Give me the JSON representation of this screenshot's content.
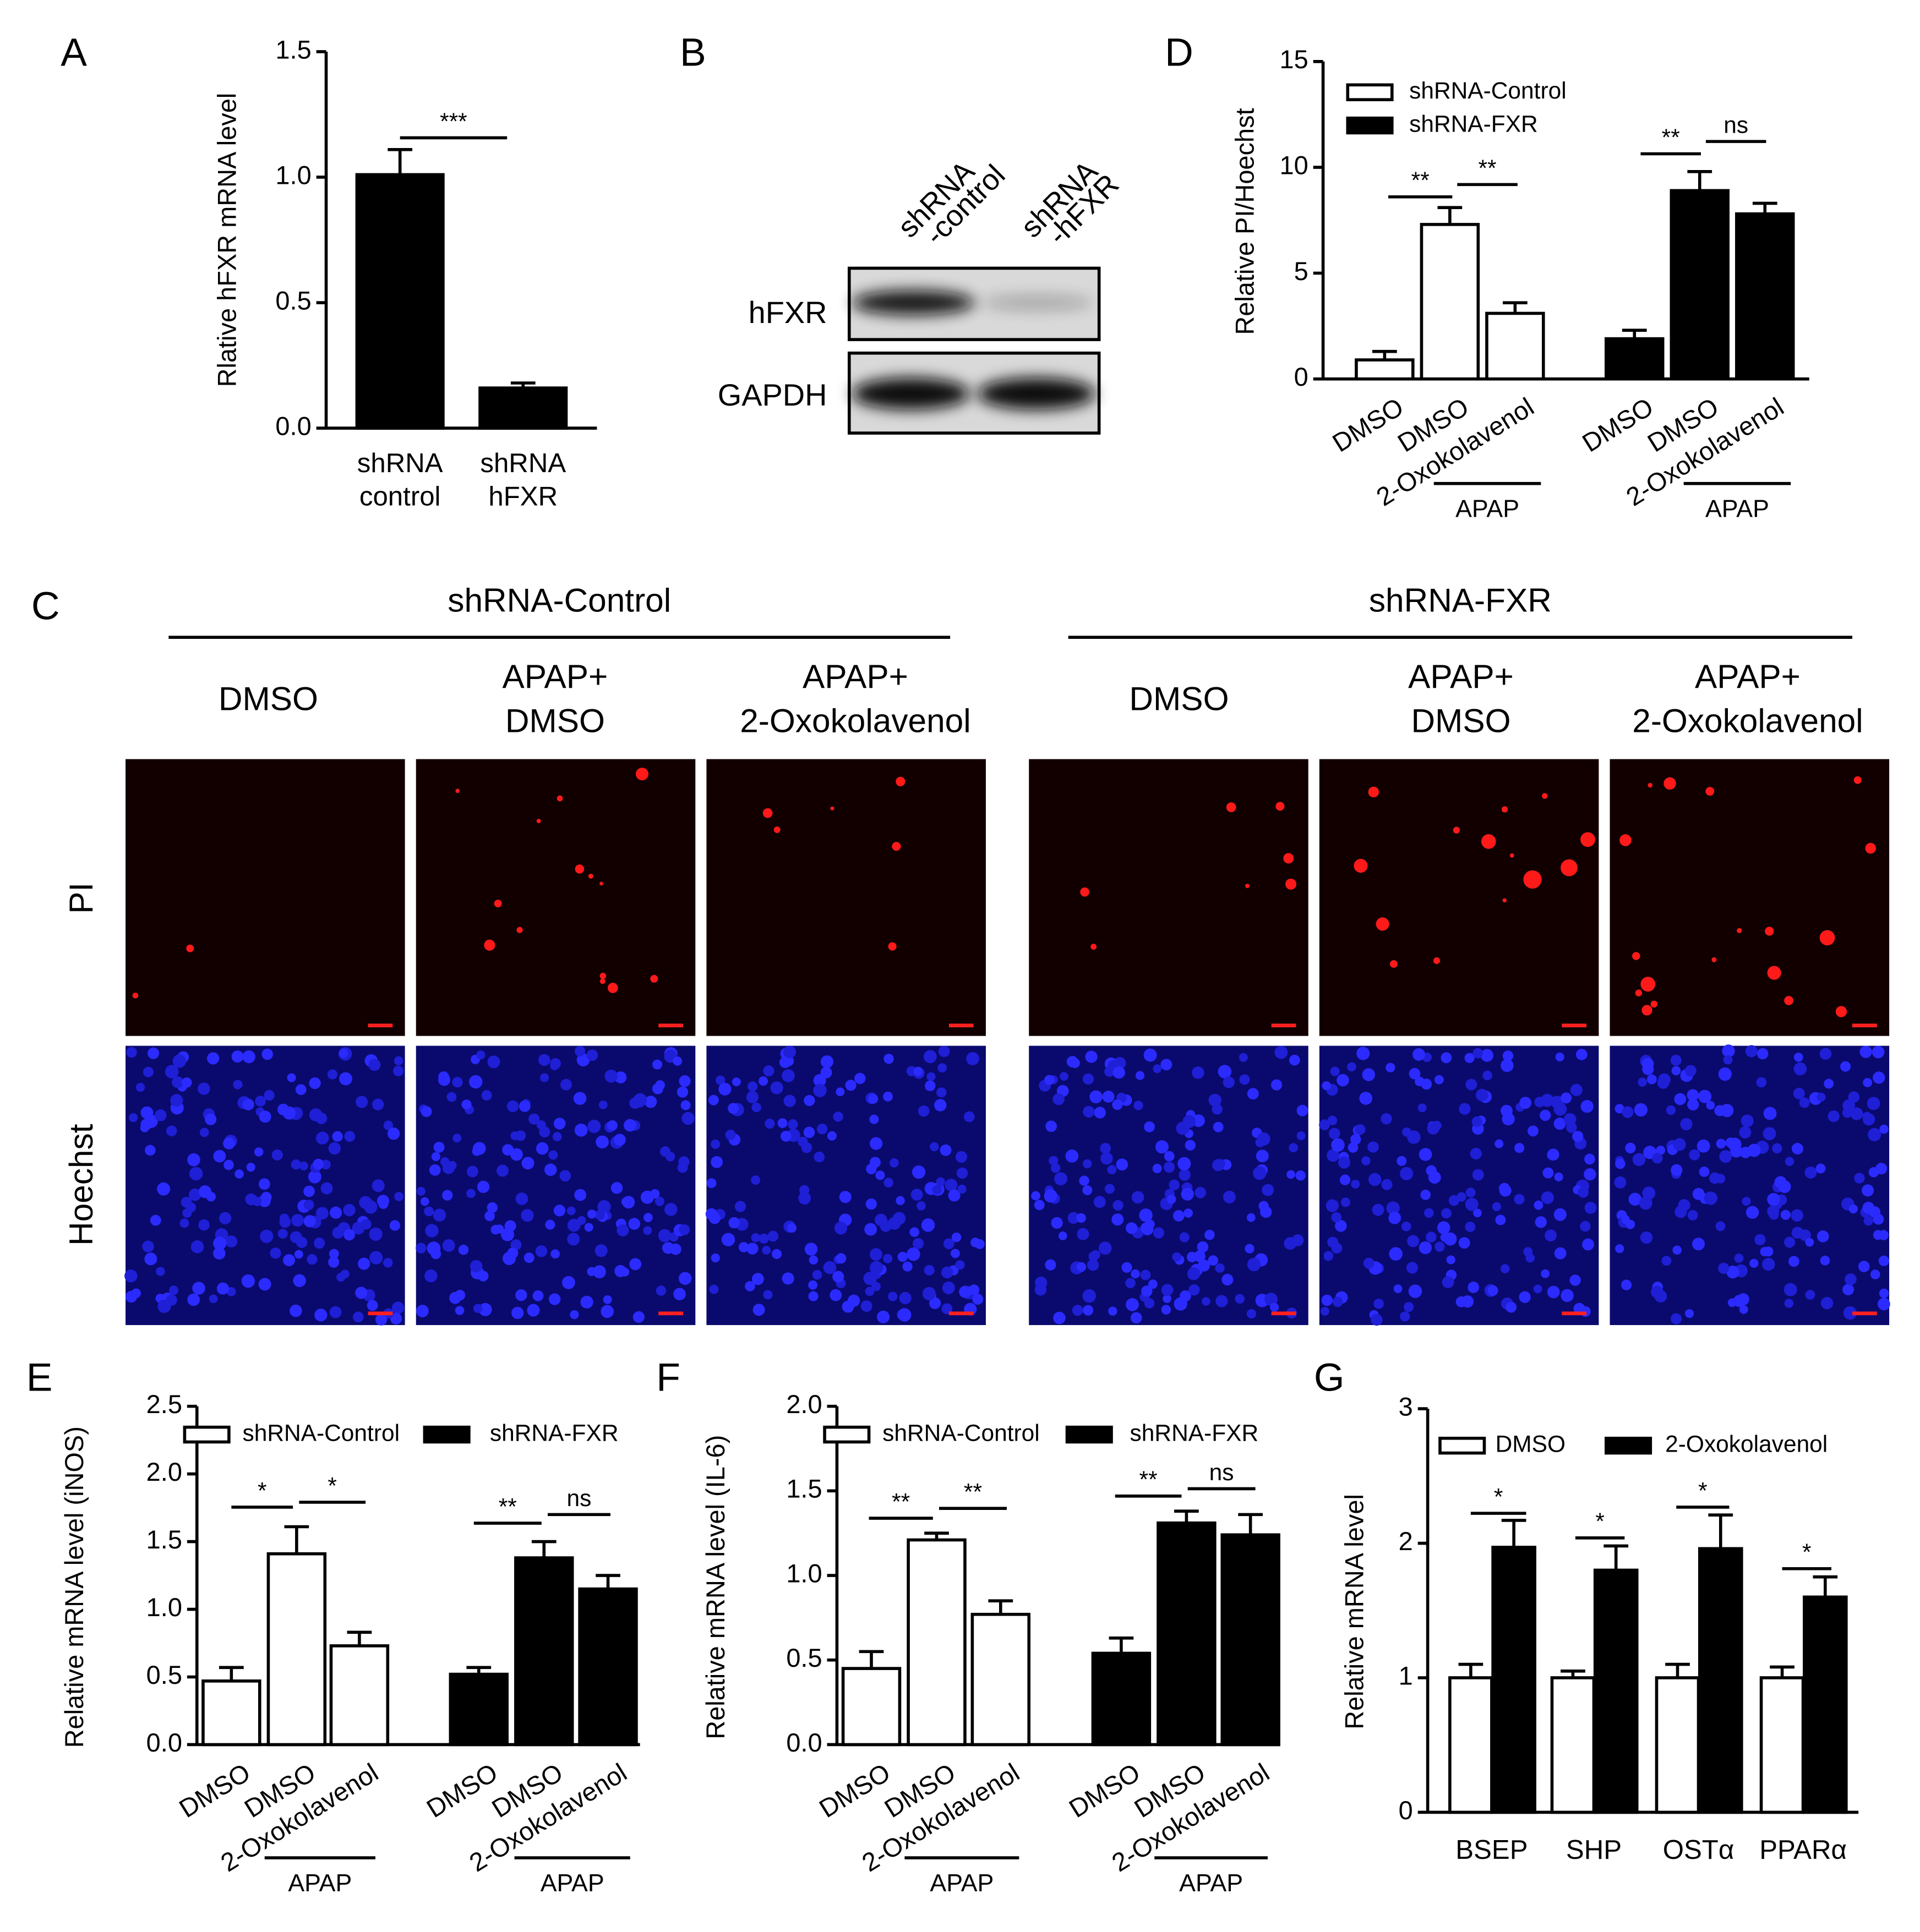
{
  "chart_data": [
    {
      "type": "bar",
      "panel": "A",
      "ylabel": "Rlative hFXR mRNA level",
      "categories": [
        [
          "shRNA",
          "control"
        ],
        [
          "shRNA",
          "hFXR"
        ]
      ],
      "values": [
        1.01,
        0.16
      ],
      "errors": [
        0.1,
        0.02
      ],
      "color": "#000000",
      "ylim": [
        0,
        1.5
      ],
      "yticks": [
        {
          "value": 0,
          "label": "0.0"
        },
        {
          "value": 0.5,
          "label": "0.5"
        },
        {
          "value": 1,
          "label": "1.0"
        },
        {
          "value": 1.5,
          "label": "1.5"
        }
      ],
      "significance": [
        "***"
      ]
    },
    {
      "type": "bar",
      "panel": "D",
      "ylabel": "Relative PI/Hoechst",
      "categories": [
        "DMSO",
        "DMSO",
        "2-Oxokolavenol",
        "DMSO",
        "DMSO",
        "2-Oxokolavenol"
      ],
      "series": [
        {
          "name": "shRNA-Control",
          "color": "#ffffff",
          "values": [
            0.9,
            7.3,
            3.1,
            null,
            null,
            null
          ],
          "errors": [
            0.4,
            0.8,
            0.5,
            null,
            null,
            null
          ]
        },
        {
          "name": "shRNA-FXR",
          "color": "#000000",
          "values": [
            null,
            null,
            null,
            1.9,
            8.9,
            7.8
          ],
          "errors": [
            null,
            null,
            null,
            0.4,
            0.9,
            0.5
          ]
        }
      ],
      "ylim": [
        0,
        15
      ],
      "yticks": [
        0,
        5,
        10,
        15
      ],
      "legend": "upper left",
      "significance": [
        "**",
        "**",
        "**",
        "ns"
      ],
      "treatment_labels": [
        "APAP",
        "APAP"
      ]
    },
    {
      "type": "bar",
      "panel": "E",
      "ylabel": "Relative mRNA level (iNOS)",
      "categories": [
        "DMSO",
        "DMSO",
        "2-Oxokolavenol",
        "DMSO",
        "DMSO",
        "2-Oxokolavenol"
      ],
      "series": [
        {
          "name": "shRNA-Control",
          "color": "#ffffff",
          "values": [
            0.47,
            1.41,
            0.73,
            null,
            null,
            null
          ],
          "errors": [
            0.1,
            0.2,
            0.1,
            null,
            null,
            null
          ]
        },
        {
          "name": "shRNA-FXR",
          "color": "#000000",
          "values": [
            null,
            null,
            null,
            0.52,
            1.38,
            1.15
          ],
          "errors": [
            null,
            null,
            null,
            0.05,
            0.12,
            0.1
          ]
        }
      ],
      "ylim": [
        0,
        2.5
      ],
      "yticks": [
        {
          "value": 0,
          "label": "0.0"
        },
        {
          "value": 0.5,
          "label": "0.5"
        },
        {
          "value": 1,
          "label": "1.0"
        },
        {
          "value": 1.5,
          "label": "1.5"
        },
        {
          "value": 2,
          "label": "2.0"
        },
        {
          "value": 2.5,
          "label": "2.5"
        }
      ],
      "legend": "upper left",
      "significance": [
        "*",
        "*",
        "**",
        "ns"
      ],
      "treatment_labels": [
        "APAP",
        "APAP"
      ]
    },
    {
      "type": "bar",
      "panel": "F",
      "ylabel": "Relative mRNA level (IL-6)",
      "categories": [
        "DMSO",
        "DMSO",
        "2-Oxokolavenol",
        "DMSO",
        "DMSO",
        "2-Oxokolavenol"
      ],
      "series": [
        {
          "name": "shRNA-Control",
          "color": "#ffffff",
          "values": [
            0.45,
            1.21,
            0.77,
            null,
            null,
            null
          ],
          "errors": [
            0.1,
            0.04,
            0.08,
            null,
            null,
            null
          ]
        },
        {
          "name": "shRNA-FXR",
          "color": "#000000",
          "values": [
            null,
            null,
            null,
            0.54,
            1.31,
            1.24
          ],
          "errors": [
            null,
            null,
            null,
            0.09,
            0.07,
            0.12
          ]
        }
      ],
      "ylim": [
        0,
        2
      ],
      "yticks": [
        {
          "value": 0,
          "label": "0.0"
        },
        {
          "value": 0.5,
          "label": "0.5"
        },
        {
          "value": 1,
          "label": "1.0"
        },
        {
          "value": 1.5,
          "label": "1.5"
        },
        {
          "value": 2,
          "label": "2.0"
        }
      ],
      "legend": "upper left",
      "significance": [
        "**",
        "**",
        "**",
        "ns"
      ],
      "treatment_labels": [
        "APAP",
        "APAP"
      ]
    },
    {
      "type": "bar",
      "panel": "G",
      "ylabel": "Relative mRNA level",
      "categories": [
        "BSEP",
        "SHP",
        "OSTα",
        "PPARα"
      ],
      "series": [
        {
          "name": "DMSO",
          "color": "#ffffff",
          "values": [
            1.0,
            1.0,
            1.0,
            1.0
          ],
          "errors": [
            0.1,
            0.05,
            0.1,
            0.08
          ]
        },
        {
          "name": "2-Oxokolavenol",
          "color": "#000000",
          "values": [
            1.97,
            1.8,
            1.96,
            1.6
          ],
          "errors": [
            0.2,
            0.18,
            0.25,
            0.15
          ]
        }
      ],
      "ylim": [
        0,
        3
      ],
      "yticks": [
        0,
        1,
        2,
        3
      ],
      "legend": "upper left",
      "significance": [
        "*",
        "*",
        "*",
        "*"
      ]
    }
  ],
  "blot": {
    "panel": "B",
    "lanes": [
      [
        "shRNA",
        "-control"
      ],
      [
        "shRNA",
        "-hFXR"
      ]
    ],
    "rows": [
      "hFXR",
      "GAPDH"
    ]
  },
  "micrographs": {
    "panel": "C",
    "groups": [
      {
        "name": "shRNA-Control",
        "conditions": [
          [
            "DMSO"
          ],
          [
            "APAP+",
            "DMSO"
          ],
          [
            "APAP+",
            "2-Oxokolavenol"
          ]
        ]
      },
      {
        "name": "shRNA-FXR",
        "conditions": [
          [
            "DMSO"
          ],
          [
            "APAP+",
            "DMSO"
          ],
          [
            "APAP+",
            "2-Oxokolavenol"
          ]
        ]
      }
    ],
    "rows": [
      "PI",
      "Hoechst"
    ]
  }
}
